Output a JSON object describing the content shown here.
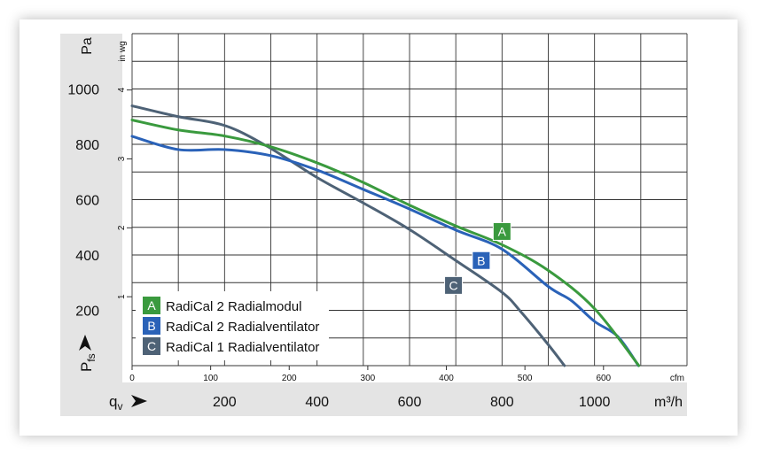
{
  "chart_data": {
    "type": "line",
    "x_unit": "m³/h",
    "x_symbol": "q",
    "x_symbol_sub": "v",
    "x_secondary_unit": "cfm",
    "y_unit": "Pa",
    "y_symbol": "p",
    "y_symbol_sub": "fs",
    "y_secondary_unit": "in wg",
    "xlim": [
      0,
      1200
    ],
    "ylim": [
      0,
      1200
    ],
    "x_ticks": [
      200,
      400,
      600,
      800,
      1000
    ],
    "y_ticks": [
      200,
      400,
      600,
      800,
      1000
    ],
    "cfm_ticks": [
      0,
      100,
      200,
      300,
      400,
      500,
      600
    ],
    "inwg_ticks": [
      1,
      2,
      3,
      4
    ],
    "grid": true,
    "grid_step_x": 100,
    "grid_step_y": 100,
    "legend_placement": "bottom-left",
    "series": [
      {
        "key": "A",
        "name": "RadiCal 2 Radialmodul",
        "color": "#3a9a3e",
        "x": [
          0,
          100,
          200,
          300,
          400,
          500,
          600,
          700,
          800,
          900,
          1000,
          1096
        ],
        "y": [
          888,
          852,
          830,
          791,
          733,
          662,
          580,
          505,
          437,
          344,
          206,
          0
        ]
      },
      {
        "key": "B",
        "name": "RadiCal 2 Radialventilator",
        "color": "#2a62b8",
        "x": [
          0,
          100,
          200,
          300,
          400,
          500,
          600,
          700,
          800,
          900,
          950,
          1000,
          1050,
          1095
        ],
        "y": [
          829,
          781,
          781,
          759,
          707,
          637,
          566,
          490,
          421,
          286,
          235,
          160,
          106,
          0
        ]
      },
      {
        "key": "C",
        "name": "RadiCal 1 Radialventilator",
        "color": "#4e6276",
        "x": [
          0,
          100,
          200,
          290,
          400,
          500,
          600,
          700,
          800,
          840,
          898,
          935
        ],
        "y": [
          939,
          900,
          868,
          795,
          680,
          588,
          492,
          380,
          265,
          196,
          80,
          0
        ]
      }
    ],
    "curve_labels": [
      {
        "key": "A",
        "x": 800,
        "y": 485
      },
      {
        "key": "B",
        "x": 755,
        "y": 380
      },
      {
        "key": "C",
        "x": 695,
        "y": 290
      }
    ]
  }
}
